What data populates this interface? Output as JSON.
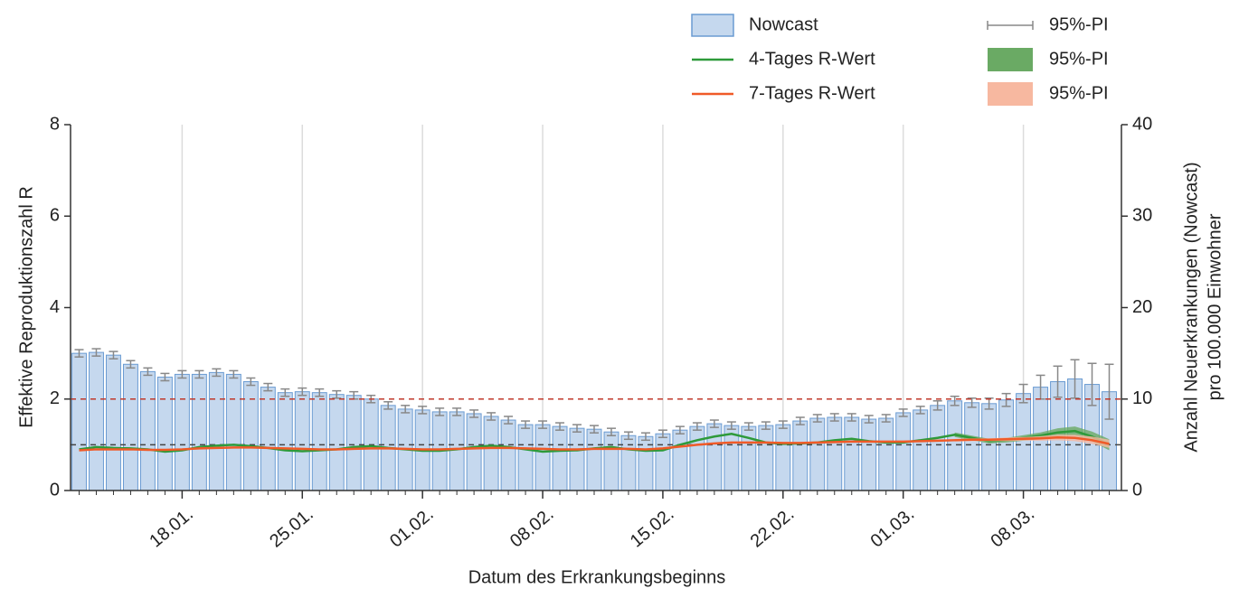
{
  "chart_data": {
    "type": "bar-line",
    "xlabel": "Datum des Erkrankungsbeginns",
    "ylabel": "Effektive Reproduktionszahl R",
    "y2label": [
      "Anzahl Neuerkrankungen (Nowcast)",
      "pro 100.000 Einwohner"
    ],
    "categories": [
      null,
      null,
      null,
      null,
      null,
      null,
      "18.01.",
      null,
      null,
      null,
      null,
      null,
      null,
      "25.01.",
      null,
      null,
      null,
      null,
      null,
      null,
      "01.02.",
      null,
      null,
      null,
      null,
      null,
      null,
      "08.02.",
      null,
      null,
      null,
      null,
      null,
      null,
      "15.02.",
      null,
      null,
      null,
      null,
      null,
      null,
      "22.02.",
      null,
      null,
      null,
      null,
      null,
      null,
      "01.03.",
      null,
      null,
      null,
      null,
      null,
      null,
      "08.03.",
      null,
      null,
      null,
      null,
      null
    ],
    "ylim": [
      0,
      8
    ],
    "yticks": [
      0,
      2,
      4,
      6,
      8
    ],
    "y2lim": [
      0,
      40
    ],
    "y2ticks": [
      0,
      10,
      20,
      30,
      40
    ],
    "xgrid": true,
    "hlines": [
      {
        "value": 1,
        "color": "#444444"
      },
      {
        "value": 2,
        "color": "#c0392b"
      }
    ],
    "series": [
      {
        "name": "Nowcast",
        "kind": "bar",
        "axis": "y2",
        "color": "#c5d8ee",
        "edge": "#6a9bd2",
        "interval_name": "95%-PI",
        "interval_color": "#888888",
        "values": [
          15,
          15.1,
          14.8,
          13.8,
          13,
          12.4,
          12.7,
          12.7,
          12.9,
          12.7,
          11.9,
          11.3,
          10.7,
          10.8,
          10.7,
          10.5,
          10.4,
          10,
          9.3,
          8.9,
          8.8,
          8.6,
          8.6,
          8.4,
          8.1,
          7.7,
          7.2,
          7.2,
          7,
          6.8,
          6.7,
          6.4,
          6,
          5.9,
          6.2,
          6.6,
          7,
          7.3,
          7.1,
          7,
          7.1,
          7.2,
          7.6,
          7.9,
          8,
          8,
          7.8,
          7.9,
          8.5,
          8.8,
          9.3,
          9.8,
          9.6,
          9.5,
          9.9,
          10.6,
          11.3,
          11.9,
          12.2,
          11.6,
          10.8
        ],
        "errors": [
          0.4,
          0.4,
          0.4,
          0.4,
          0.4,
          0.4,
          0.4,
          0.4,
          0.4,
          0.4,
          0.4,
          0.4,
          0.4,
          0.4,
          0.4,
          0.4,
          0.4,
          0.4,
          0.4,
          0.4,
          0.4,
          0.4,
          0.4,
          0.4,
          0.4,
          0.4,
          0.4,
          0.4,
          0.4,
          0.4,
          0.4,
          0.4,
          0.4,
          0.4,
          0.4,
          0.4,
          0.4,
          0.4,
          0.4,
          0.4,
          0.4,
          0.4,
          0.4,
          0.4,
          0.4,
          0.4,
          0.4,
          0.4,
          0.4,
          0.4,
          0.5,
          0.5,
          0.5,
          0.6,
          0.7,
          1,
          1.3,
          1.7,
          2.1,
          2.3,
          3
        ]
      },
      {
        "name": "4-Tages R-Wert",
        "kind": "line",
        "color": "#2e9a3a",
        "interval_name": "95%-PI",
        "interval_color": "#6aaa64",
        "values": [
          0.9,
          0.95,
          0.93,
          0.92,
          0.9,
          0.85,
          0.88,
          0.95,
          0.98,
          1.0,
          0.97,
          0.93,
          0.88,
          0.86,
          0.88,
          0.9,
          0.95,
          0.97,
          0.93,
          0.9,
          0.87,
          0.87,
          0.9,
          0.95,
          0.98,
          0.95,
          0.9,
          0.85,
          0.87,
          0.88,
          0.92,
          0.95,
          0.9,
          0.87,
          0.88,
          1.0,
          1.1,
          1.18,
          1.24,
          1.15,
          1.05,
          1.02,
          1.03,
          1.05,
          1.1,
          1.13,
          1.08,
          1.05,
          1.05,
          1.1,
          1.15,
          1.22,
          1.15,
          1.08,
          1.1,
          1.15,
          1.2,
          1.27,
          1.3,
          1.18,
          1.0
        ],
        "lower": [
          null,
          null,
          null,
          null,
          null,
          null,
          null,
          null,
          null,
          null,
          null,
          null,
          null,
          null,
          null,
          null,
          null,
          null,
          null,
          null,
          null,
          null,
          null,
          null,
          null,
          null,
          null,
          null,
          null,
          null,
          null,
          null,
          null,
          null,
          null,
          null,
          null,
          null,
          null,
          null,
          null,
          null,
          null,
          null,
          null,
          null,
          null,
          null,
          null,
          null,
          null,
          1.17,
          1.1,
          1.03,
          1.05,
          1.09,
          1.13,
          1.18,
          1.2,
          1.07,
          0.88
        ],
        "upper": [
          null,
          null,
          null,
          null,
          null,
          null,
          null,
          null,
          null,
          null,
          null,
          null,
          null,
          null,
          null,
          null,
          null,
          null,
          null,
          null,
          null,
          null,
          null,
          null,
          null,
          null,
          null,
          null,
          null,
          null,
          null,
          null,
          null,
          null,
          null,
          null,
          null,
          null,
          null,
          null,
          null,
          null,
          null,
          null,
          null,
          null,
          null,
          null,
          null,
          null,
          null,
          1.27,
          1.2,
          1.13,
          1.15,
          1.21,
          1.27,
          1.36,
          1.4,
          1.29,
          1.12
        ]
      },
      {
        "name": "7-Tages R-Wert",
        "kind": "line",
        "color": "#f05a28",
        "interval_name": "95%-PI",
        "interval_color": "#f7b8a0",
        "values": [
          0.88,
          0.9,
          0.9,
          0.9,
          0.89,
          0.89,
          0.9,
          0.92,
          0.93,
          0.94,
          0.94,
          0.93,
          0.92,
          0.91,
          0.9,
          0.9,
          0.91,
          0.92,
          0.92,
          0.91,
          0.9,
          0.9,
          0.91,
          0.92,
          0.93,
          0.93,
          0.92,
          0.91,
          0.9,
          0.9,
          0.91,
          0.91,
          0.91,
          0.9,
          0.92,
          0.96,
          1.0,
          1.03,
          1.05,
          1.05,
          1.05,
          1.04,
          1.04,
          1.05,
          1.06,
          1.07,
          1.07,
          1.07,
          1.07,
          1.08,
          1.09,
          1.1,
          1.11,
          1.11,
          1.12,
          1.13,
          1.14,
          1.16,
          1.15,
          1.1,
          1.02
        ],
        "lower": [
          null,
          null,
          null,
          null,
          null,
          null,
          null,
          null,
          null,
          null,
          null,
          null,
          null,
          null,
          null,
          null,
          null,
          null,
          null,
          null,
          null,
          null,
          null,
          null,
          null,
          null,
          null,
          null,
          null,
          null,
          null,
          null,
          null,
          null,
          null,
          null,
          null,
          null,
          null,
          null,
          null,
          null,
          null,
          null,
          null,
          null,
          null,
          null,
          null,
          null,
          null,
          1.07,
          1.08,
          1.08,
          1.08,
          1.09,
          1.09,
          1.1,
          1.08,
          1.02,
          0.93
        ],
        "upper": [
          null,
          null,
          null,
          null,
          null,
          null,
          null,
          null,
          null,
          null,
          null,
          null,
          null,
          null,
          null,
          null,
          null,
          null,
          null,
          null,
          null,
          null,
          null,
          null,
          null,
          null,
          null,
          null,
          null,
          null,
          null,
          null,
          null,
          null,
          null,
          null,
          null,
          null,
          null,
          null,
          null,
          null,
          null,
          null,
          null,
          null,
          null,
          null,
          null,
          null,
          null,
          1.13,
          1.14,
          1.14,
          1.16,
          1.17,
          1.19,
          1.22,
          1.22,
          1.18,
          1.11
        ]
      }
    ]
  }
}
